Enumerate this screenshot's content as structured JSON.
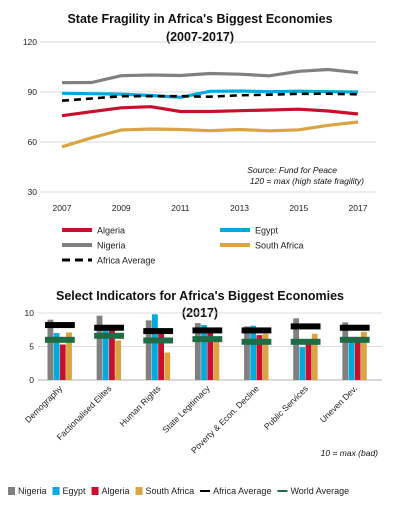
{
  "chart_data": [
    {
      "type": "line",
      "title": "State Fragility in Africa's Biggest Economies",
      "subtitle": "(2007-2017)",
      "x": [
        2007,
        2008,
        2009,
        2010,
        2011,
        2012,
        2013,
        2014,
        2015,
        2016,
        2017
      ],
      "x_ticks": [
        "2007",
        "2009",
        "2011",
        "2013",
        "2015",
        "2017"
      ],
      "y_ticks": [
        "30",
        "60",
        "90",
        "120"
      ],
      "ylim": [
        30,
        120
      ],
      "grid": true,
      "legend_position": "bottom",
      "annotation": [
        "Source: Fund for Peace",
        "120 = max (high state fragility)"
      ],
      "series": [
        {
          "name": "Algeria",
          "color": "#c8102e",
          "style": "solid",
          "values": [
            75.8,
            78.2,
            80.5,
            81.2,
            78.3,
            78.3,
            78.8,
            79.2,
            79.7,
            78.6,
            76.8
          ]
        },
        {
          "name": "Egypt",
          "color": "#00aadd",
          "style": "solid",
          "values": [
            89.2,
            89.0,
            88.7,
            87.9,
            86.8,
            90.4,
            90.6,
            90.2,
            90.5,
            90.2,
            90.0
          ]
        },
        {
          "name": "Nigeria",
          "color": "#808080",
          "style": "solid",
          "values": [
            95.6,
            95.7,
            99.8,
            100.2,
            99.9,
            101.1,
            100.7,
            99.7,
            102.4,
            103.5,
            101.6
          ]
        },
        {
          "name": "South Africa",
          "color": "#d9a441",
          "style": "solid",
          "values": [
            57.1,
            62.5,
            67.2,
            67.8,
            67.5,
            66.8,
            67.5,
            66.7,
            67.3,
            70.0,
            72.0
          ]
        },
        {
          "name": "Africa Average",
          "color": "#000000",
          "style": "dashed",
          "values": [
            84.8,
            86.1,
            87.5,
            87.5,
            87.5,
            87.2,
            88.0,
            88.4,
            88.9,
            89.0,
            88.6
          ]
        }
      ]
    },
    {
      "type": "bar",
      "title": "Select Indicators for Africa's Biggest Economies",
      "subtitle": "(2017)",
      "categories": [
        "Demography",
        "Factionalised Elites",
        "Human Rights",
        "State Legitimacy",
        "Poverty & Econ. Decline",
        "Public Services",
        "Uneven Dev."
      ],
      "y_ticks": [
        "0",
        "5",
        "10"
      ],
      "ylim": [
        0,
        10
      ],
      "annotation": "10 = max (bad)",
      "legend_position": "bottom",
      "series": [
        {
          "name": "Nigeria",
          "color": "#808080",
          "values": [
            9.0,
            9.6,
            8.9,
            8.5,
            8.0,
            9.2,
            8.6
          ]
        },
        {
          "name": "Egypt",
          "color": "#00aadd",
          "values": [
            7.0,
            8.2,
            9.8,
            8.2,
            8.1,
            4.9,
            6.2
          ]
        },
        {
          "name": "Algeria",
          "color": "#c8102e",
          "values": [
            5.3,
            7.8,
            7.5,
            7.0,
            6.7,
            6.0,
            6.4
          ]
        },
        {
          "name": "South Africa",
          "color": "#d9a441",
          "values": [
            7.1,
            5.9,
            4.1,
            5.9,
            6.9,
            6.9,
            7.2
          ]
        }
      ],
      "reference_markers": [
        {
          "name": "Africa Average",
          "color": "#000000",
          "values": [
            8.2,
            7.8,
            7.3,
            7.4,
            7.4,
            8.0,
            7.8
          ]
        },
        {
          "name": "World Average",
          "color": "#1e6b45",
          "values": [
            6.0,
            6.6,
            5.9,
            6.1,
            5.7,
            5.7,
            6.0
          ]
        }
      ]
    }
  ]
}
